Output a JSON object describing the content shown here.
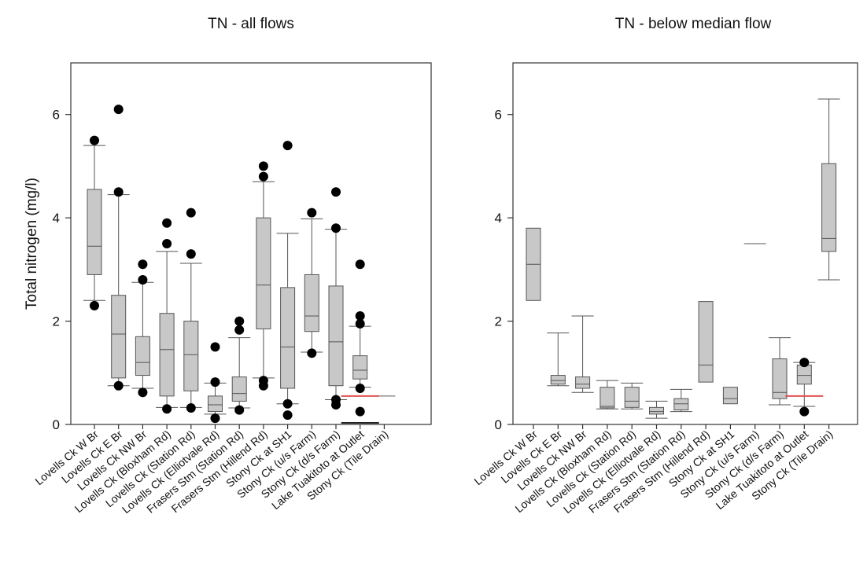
{
  "chart_data": [
    {
      "type": "box",
      "title": "TN - all flows",
      "ylabel": "Total nitrogen (mg/l)",
      "ylim": [
        0,
        7
      ],
      "yticks": [
        0,
        2,
        4,
        6
      ],
      "categories": [
        "Lovells Ck W Br",
        "Lovells Ck E Br",
        "Lovells Ck NW Br",
        "Lovells Ck (Bloxham Rd)",
        "Lovells Ck (Station Rd)",
        "Lovells Ck (Elliotvale Rd)",
        "Frasers Stm (Station Rd)",
        "Frasers Stm (Hillend Rd)",
        "Stony Ck at SH1",
        "Stony Ck (u/s Farm)",
        "Stony Ck (d/s Farm)",
        "Lake Tuakitoto at Outlet",
        "Stony Ck (Tile Drain)"
      ],
      "boxes": [
        {
          "min": 2.4,
          "q1": 2.9,
          "median": 3.45,
          "q3": 4.55,
          "max": 5.4,
          "outliers": [
            2.3,
            5.5
          ]
        },
        {
          "min": 0.75,
          "q1": 0.9,
          "median": 1.75,
          "q3": 2.5,
          "max": 4.45,
          "outliers": [
            0.75,
            4.5,
            6.1
          ]
        },
        {
          "min": 0.7,
          "q1": 0.95,
          "median": 1.2,
          "q3": 1.7,
          "max": 2.75,
          "outliers": [
            0.62,
            2.8,
            3.1
          ]
        },
        {
          "min": 0.33,
          "q1": 0.55,
          "median": 1.45,
          "q3": 2.15,
          "max": 3.35,
          "outliers": [
            0.3,
            3.5,
            3.9
          ]
        },
        {
          "min": 0.33,
          "q1": 0.65,
          "median": 1.35,
          "q3": 2.0,
          "max": 3.12,
          "outliers": [
            0.32,
            3.3,
            4.1
          ]
        },
        {
          "min": 0.2,
          "q1": 0.25,
          "median": 0.38,
          "q3": 0.55,
          "max": 0.8,
          "outliers": [
            0.12,
            0.82,
            1.5
          ]
        },
        {
          "min": 0.32,
          "q1": 0.45,
          "median": 0.6,
          "q3": 0.92,
          "max": 1.68,
          "outliers": [
            0.28,
            1.83,
            2.0
          ]
        },
        {
          "min": 0.9,
          "q1": 1.85,
          "median": 2.7,
          "q3": 4.0,
          "max": 4.7,
          "outliers": [
            0.75,
            0.85,
            4.8,
            5.0
          ]
        },
        {
          "min": 0.4,
          "q1": 0.7,
          "median": 1.5,
          "q3": 2.65,
          "max": 3.7,
          "outliers": [
            0.18,
            0.4,
            5.4
          ]
        },
        {
          "min": 1.4,
          "q1": 1.8,
          "median": 2.1,
          "q3": 2.9,
          "max": 3.98,
          "outliers": [
            1.38,
            4.1
          ]
        },
        {
          "min": 0.48,
          "q1": 0.75,
          "median": 1.6,
          "q3": 2.68,
          "max": 3.78,
          "outliers": [
            0.38,
            0.48,
            3.8,
            4.5
          ]
        },
        {
          "min": 0.72,
          "q1": 0.88,
          "median": 1.05,
          "q3": 1.33,
          "max": 1.9,
          "outliers": [
            0.25,
            0.7,
            1.95,
            2.1,
            3.1
          ]
        },
        {
          "min": 0.55,
          "q1": 0.55,
          "median": 0.55,
          "q3": 0.55,
          "max": 0.55,
          "outliers": []
        }
      ],
      "reference_line": {
        "value": 0.55,
        "category_index": 11,
        "color": "#e05050"
      },
      "near_zero_line": {
        "value": 0.03,
        "category_index": 11
      }
    },
    {
      "type": "box",
      "title": "TN - below median flow",
      "ylabel": "",
      "ylim": [
        0,
        7
      ],
      "yticks": [
        0,
        2,
        4,
        6
      ],
      "categories": [
        "Lovells Ck W Br",
        "Lovells Ck E Br",
        "Lovells Ck NW Br",
        "Lovells Ck (Bloxham Rd)",
        "Lovells Ck (Station Rd)",
        "Lovells Ck (Elliotvale Rd)",
        "Frasers Stm (Station Rd)",
        "Frasers Stm (Hillend Rd)",
        "Stony Ck at SH1",
        "Stony Ck (u/s Farm)",
        "Stony Ck (d/s Farm)",
        "Lake Tuakitoto at Outlet",
        "Stony Ck (Tile Drain)"
      ],
      "boxes": [
        {
          "min": 2.4,
          "q1": 2.4,
          "median": 3.1,
          "q3": 3.8,
          "max": 3.8,
          "outliers": []
        },
        {
          "min": 0.75,
          "q1": 0.78,
          "median": 0.85,
          "q3": 0.95,
          "max": 1.77,
          "outliers": []
        },
        {
          "min": 0.62,
          "q1": 0.7,
          "median": 0.78,
          "q3": 0.92,
          "max": 2.1,
          "outliers": []
        },
        {
          "min": 0.3,
          "q1": 0.32,
          "median": 0.35,
          "q3": 0.72,
          "max": 0.85,
          "outliers": []
        },
        {
          "min": 0.3,
          "q1": 0.33,
          "median": 0.45,
          "q3": 0.72,
          "max": 0.8,
          "outliers": []
        },
        {
          "min": 0.12,
          "q1": 0.2,
          "median": 0.25,
          "q3": 0.33,
          "max": 0.45,
          "outliers": []
        },
        {
          "min": 0.25,
          "q1": 0.28,
          "median": 0.4,
          "q3": 0.5,
          "max": 0.68,
          "outliers": []
        },
        {
          "min": 0.82,
          "q1": 0.82,
          "median": 1.15,
          "q3": 2.38,
          "max": 2.38,
          "outliers": []
        },
        {
          "min": 0.4,
          "q1": 0.4,
          "median": 0.5,
          "q3": 0.72,
          "max": 0.72,
          "outliers": []
        },
        {
          "min": 3.5,
          "q1": 3.5,
          "median": 3.5,
          "q3": 3.5,
          "max": 3.5,
          "outliers": []
        },
        {
          "min": 0.38,
          "q1": 0.5,
          "median": 0.62,
          "q3": 1.27,
          "max": 1.68,
          "outliers": []
        },
        {
          "min": 0.35,
          "q1": 0.78,
          "median": 0.95,
          "q3": 1.15,
          "max": 1.2,
          "outliers": [
            0.25,
            1.2
          ]
        },
        {
          "min": 2.8,
          "q1": 3.35,
          "median": 3.6,
          "q3": 5.05,
          "max": 6.3,
          "outliers": []
        }
      ],
      "reference_line": {
        "value": 0.55,
        "category_index": 11,
        "color": "#e05050"
      }
    }
  ]
}
